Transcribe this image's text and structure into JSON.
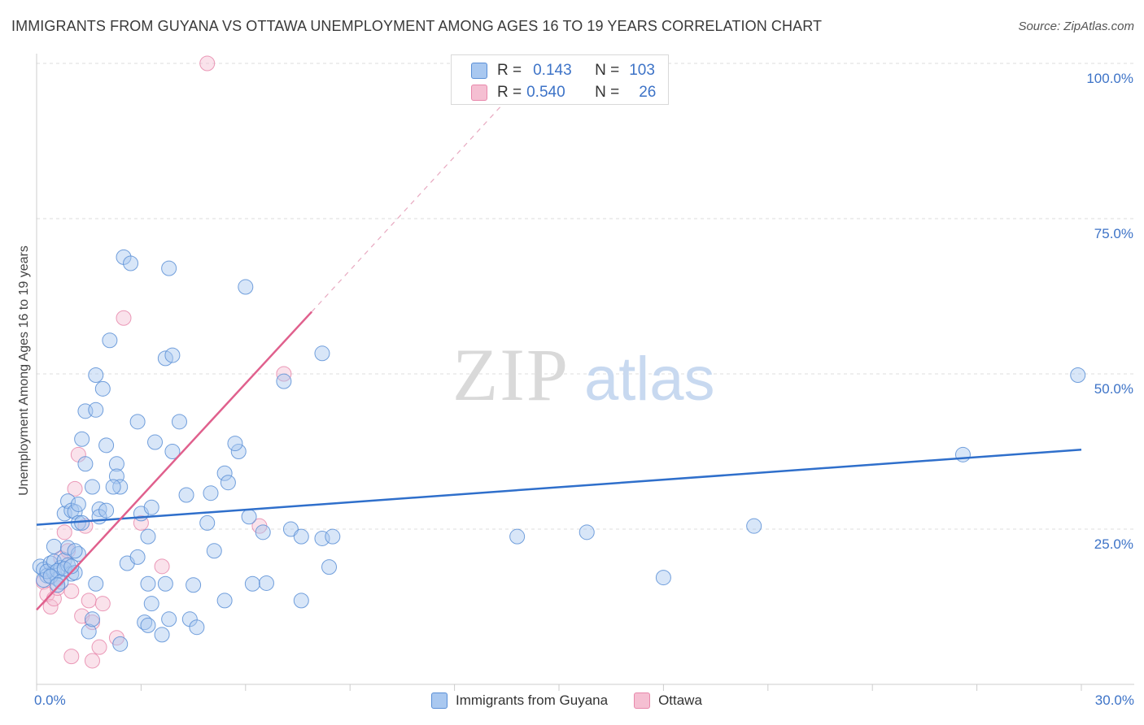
{
  "title": "IMMIGRANTS FROM GUYANA VS OTTAWA UNEMPLOYMENT AMONG AGES 16 TO 19 YEARS CORRELATION CHART",
  "source": "Source: ZipAtlas.com",
  "watermark": {
    "zip": "ZIP",
    "atlas": "atlas"
  },
  "colors": {
    "blue_fill": "#a9c8f0",
    "blue_stroke": "#5a8fd6",
    "blue_line": "#2f6fcb",
    "pink_fill": "#f5bfd2",
    "pink_stroke": "#e888ab",
    "pink_line": "#e0608d",
    "tick_text": "#3d73c7"
  },
  "stats": {
    "r_label": "R =",
    "n_label": "N =",
    "rows": [
      {
        "r": "0.143",
        "n": "103"
      },
      {
        "r": "0.540",
        "n": "26"
      }
    ]
  },
  "legend": {
    "items": [
      "Immigrants from Guyana",
      "Ottawa"
    ]
  },
  "chart_data": {
    "type": "scatter",
    "title": "IMMIGRANTS FROM GUYANA VS OTTAWA UNEMPLOYMENT AMONG AGES 16 TO 19 YEARS CORRELATION CHART",
    "xlabel": "",
    "ylabel": "Unemployment Among Ages 16 to 19 years",
    "xlim": [
      0,
      30
    ],
    "ylim": [
      0,
      100
    ],
    "x_tick_labels": [
      "0.0%",
      "30.0%"
    ],
    "y_ticks": [
      25,
      50,
      75,
      100
    ],
    "y_tick_labels": [
      "25.0%",
      "50.0%",
      "75.0%",
      "100.0%"
    ],
    "grid": "horizontal dashed",
    "legend_position": "bottom-center",
    "series": [
      {
        "name": "Immigrants from Guyana",
        "r": 0.143,
        "n": 103,
        "trend": {
          "x": [
            0,
            30
          ],
          "y": [
            25.7,
            37.8
          ]
        },
        "points": [
          [
            0.1,
            19.0
          ],
          [
            0.2,
            18.5
          ],
          [
            0.3,
            17.5
          ],
          [
            0.2,
            16.8
          ],
          [
            0.4,
            19.5
          ],
          [
            0.5,
            18.0
          ],
          [
            0.6,
            17.0
          ],
          [
            0.3,
            18.2
          ],
          [
            0.5,
            19.8
          ],
          [
            0.7,
            18.8
          ],
          [
            0.8,
            20.0
          ],
          [
            0.6,
            18.3
          ],
          [
            0.9,
            19.2
          ],
          [
            1.0,
            17.8
          ],
          [
            0.4,
            17.4
          ],
          [
            0.7,
            16.5
          ],
          [
            0.8,
            18.6
          ],
          [
            1.1,
            18.0
          ],
          [
            0.5,
            22.2
          ],
          [
            0.9,
            22.0
          ],
          [
            1.2,
            21.0
          ],
          [
            1.0,
            19.0
          ],
          [
            0.6,
            16.0
          ],
          [
            0.8,
            27.5
          ],
          [
            0.9,
            29.5
          ],
          [
            1.0,
            28.0
          ],
          [
            1.1,
            27.8
          ],
          [
            1.2,
            26.0
          ],
          [
            1.3,
            26.0
          ],
          [
            1.4,
            35.5
          ],
          [
            1.3,
            39.5
          ],
          [
            1.4,
            44.0
          ],
          [
            1.7,
            44.2
          ],
          [
            1.7,
            49.8
          ],
          [
            1.9,
            47.6
          ],
          [
            2.0,
            38.5
          ],
          [
            1.6,
            31.8
          ],
          [
            1.8,
            28.2
          ],
          [
            1.8,
            27.0
          ],
          [
            2.0,
            28.0
          ],
          [
            2.3,
            35.5
          ],
          [
            2.3,
            33.5
          ],
          [
            2.4,
            31.8
          ],
          [
            2.2,
            31.8
          ],
          [
            2.1,
            55.4
          ],
          [
            2.5,
            68.8
          ],
          [
            2.7,
            67.8
          ],
          [
            2.9,
            42.3
          ],
          [
            3.0,
            27.5
          ],
          [
            2.6,
            19.5
          ],
          [
            2.9,
            20.5
          ],
          [
            3.2,
            23.8
          ],
          [
            3.3,
            28.5
          ],
          [
            3.4,
            39.0
          ],
          [
            3.2,
            16.2
          ],
          [
            3.3,
            13.0
          ],
          [
            3.1,
            10.0
          ],
          [
            3.2,
            9.5
          ],
          [
            3.6,
            8.0
          ],
          [
            3.7,
            16.2
          ],
          [
            3.8,
            10.5
          ],
          [
            3.9,
            37.5
          ],
          [
            3.7,
            52.5
          ],
          [
            3.9,
            53.0
          ],
          [
            3.8,
            67.0
          ],
          [
            4.1,
            42.3
          ],
          [
            4.3,
            30.5
          ],
          [
            4.5,
            16.0
          ],
          [
            4.4,
            10.5
          ],
          [
            4.6,
            9.2
          ],
          [
            4.9,
            26.0
          ],
          [
            5.0,
            30.8
          ],
          [
            5.1,
            21.5
          ],
          [
            5.4,
            34.0
          ],
          [
            5.5,
            32.5
          ],
          [
            5.8,
            37.5
          ],
          [
            5.7,
            38.8
          ],
          [
            5.4,
            13.5
          ],
          [
            6.1,
            27.0
          ],
          [
            6.0,
            64.0
          ],
          [
            6.2,
            16.2
          ],
          [
            6.6,
            16.3
          ],
          [
            6.5,
            24.5
          ],
          [
            7.3,
            25.0
          ],
          [
            7.6,
            23.8
          ],
          [
            7.6,
            13.5
          ],
          [
            8.2,
            23.5
          ],
          [
            8.5,
            23.8
          ],
          [
            8.4,
            18.9
          ],
          [
            7.1,
            48.8
          ],
          [
            8.2,
            53.3
          ],
          [
            13.8,
            23.8
          ],
          [
            15.8,
            24.5
          ],
          [
            18.0,
            17.2
          ],
          [
            20.6,
            25.5
          ],
          [
            26.6,
            37.0
          ],
          [
            29.9,
            49.8
          ],
          [
            1.5,
            8.5
          ],
          [
            1.6,
            10.5
          ],
          [
            1.7,
            16.2
          ],
          [
            2.4,
            6.5
          ],
          [
            1.2,
            29.0
          ],
          [
            1.1,
            21.5
          ]
        ]
      },
      {
        "name": "Ottawa",
        "r": 0.54,
        "n": 26,
        "trend": {
          "x": [
            0,
            7.9
          ],
          "y": [
            12.0,
            60.0
          ]
        },
        "trend_dashed": {
          "x": [
            7.9,
            14.3
          ],
          "y": [
            60.0,
            99.0
          ]
        },
        "points": [
          [
            0.2,
            16.5
          ],
          [
            0.3,
            14.5
          ],
          [
            0.4,
            12.5
          ],
          [
            0.5,
            13.8
          ],
          [
            0.6,
            15.5
          ],
          [
            0.8,
            24.5
          ],
          [
            0.7,
            20.3
          ],
          [
            0.9,
            21.5
          ],
          [
            1.0,
            15.0
          ],
          [
            1.1,
            31.5
          ],
          [
            1.2,
            37.0
          ],
          [
            1.3,
            11.0
          ],
          [
            1.5,
            13.5
          ],
          [
            1.6,
            10.0
          ],
          [
            1.4,
            25.5
          ],
          [
            1.9,
            13.0
          ],
          [
            1.8,
            6.0
          ],
          [
            1.6,
            3.8
          ],
          [
            2.3,
            7.5
          ],
          [
            2.5,
            59.0
          ],
          [
            3.0,
            26.0
          ],
          [
            3.6,
            19.0
          ],
          [
            6.4,
            25.5
          ],
          [
            7.1,
            50.0
          ],
          [
            4.9,
            100.0
          ],
          [
            1.0,
            4.5
          ]
        ]
      }
    ]
  }
}
